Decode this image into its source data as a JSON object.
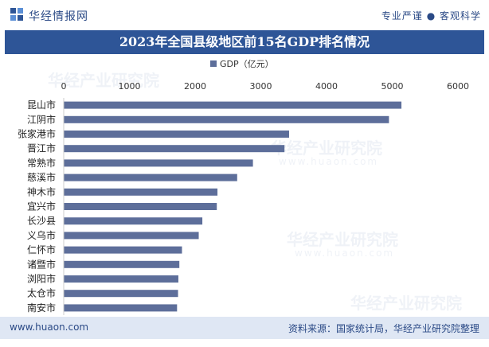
{
  "header": {
    "brand": "华经情报网",
    "slogan": "专业严谨 ● 客观科学"
  },
  "colors": {
    "bar": "#5d6e9a",
    "title_bg": "#2e5597",
    "footer_bg": "#dfe7f4"
  },
  "chart_data": {
    "type": "bar",
    "orientation": "horizontal",
    "title": "2023年全国县级地区前15名GDP排名情况",
    "legend": "GDP（亿元）",
    "legend_position": "top",
    "categories": [
      "昆山市",
      "江阴市",
      "张家港市",
      "晋江市",
      "常熟市",
      "慈溪市",
      "神木市",
      "宜兴市",
      "长沙县",
      "义乌市",
      "仁怀市",
      "诸暨市",
      "浏阳市",
      "太仓市",
      "南安市"
    ],
    "series": [
      {
        "name": "GDP（亿元）",
        "values": [
          5140,
          4950,
          3430,
          3360,
          2880,
          2640,
          2340,
          2330,
          2110,
          2055,
          1800,
          1760,
          1745,
          1740,
          1725
        ]
      }
    ],
    "xlim": [
      0,
      6000
    ],
    "xticks": [
      "0",
      "1000",
      "2000",
      "3000",
      "4000",
      "5000",
      "6000"
    ],
    "grid": false
  },
  "watermark": {
    "cn": "华经产业研究院",
    "en": "www.huaon.com"
  },
  "footer": {
    "website": "www.huaon.com",
    "source": "资料来源：国家统计局，华经产业研究院整理"
  }
}
